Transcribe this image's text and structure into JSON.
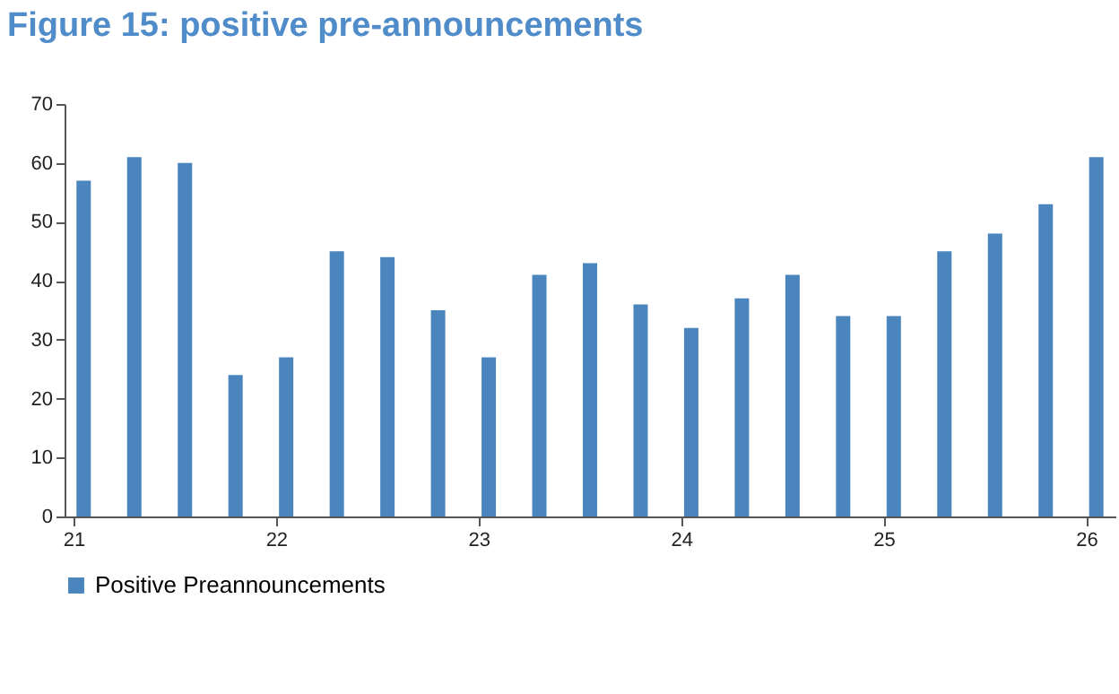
{
  "chart_data": {
    "type": "bar",
    "title": "Figure 15: positive pre-announcements",
    "x": [
      21.05,
      21.3,
      21.55,
      21.8,
      22.05,
      22.3,
      22.55,
      22.8,
      23.05,
      23.3,
      23.55,
      23.8,
      24.05,
      24.3,
      24.55,
      24.8,
      25.05,
      25.3,
      25.55,
      25.8,
      26.05
    ],
    "series": [
      {
        "name": "Positive Preannouncements",
        "color": "#4a86bd",
        "values": [
          57,
          61,
          60,
          24,
          27,
          45,
          44,
          35,
          27,
          41,
          43,
          36,
          32,
          37,
          41,
          34,
          34,
          45,
          48,
          53,
          61
        ]
      }
    ],
    "xlim": [
      21,
      26.1
    ],
    "xticks": [
      21,
      22,
      23,
      24,
      25,
      26
    ],
    "ylim": [
      0,
      70
    ],
    "yticks": [
      0,
      10,
      20,
      30,
      40,
      50,
      60,
      70
    ],
    "grid": false,
    "legend": "bottom"
  }
}
